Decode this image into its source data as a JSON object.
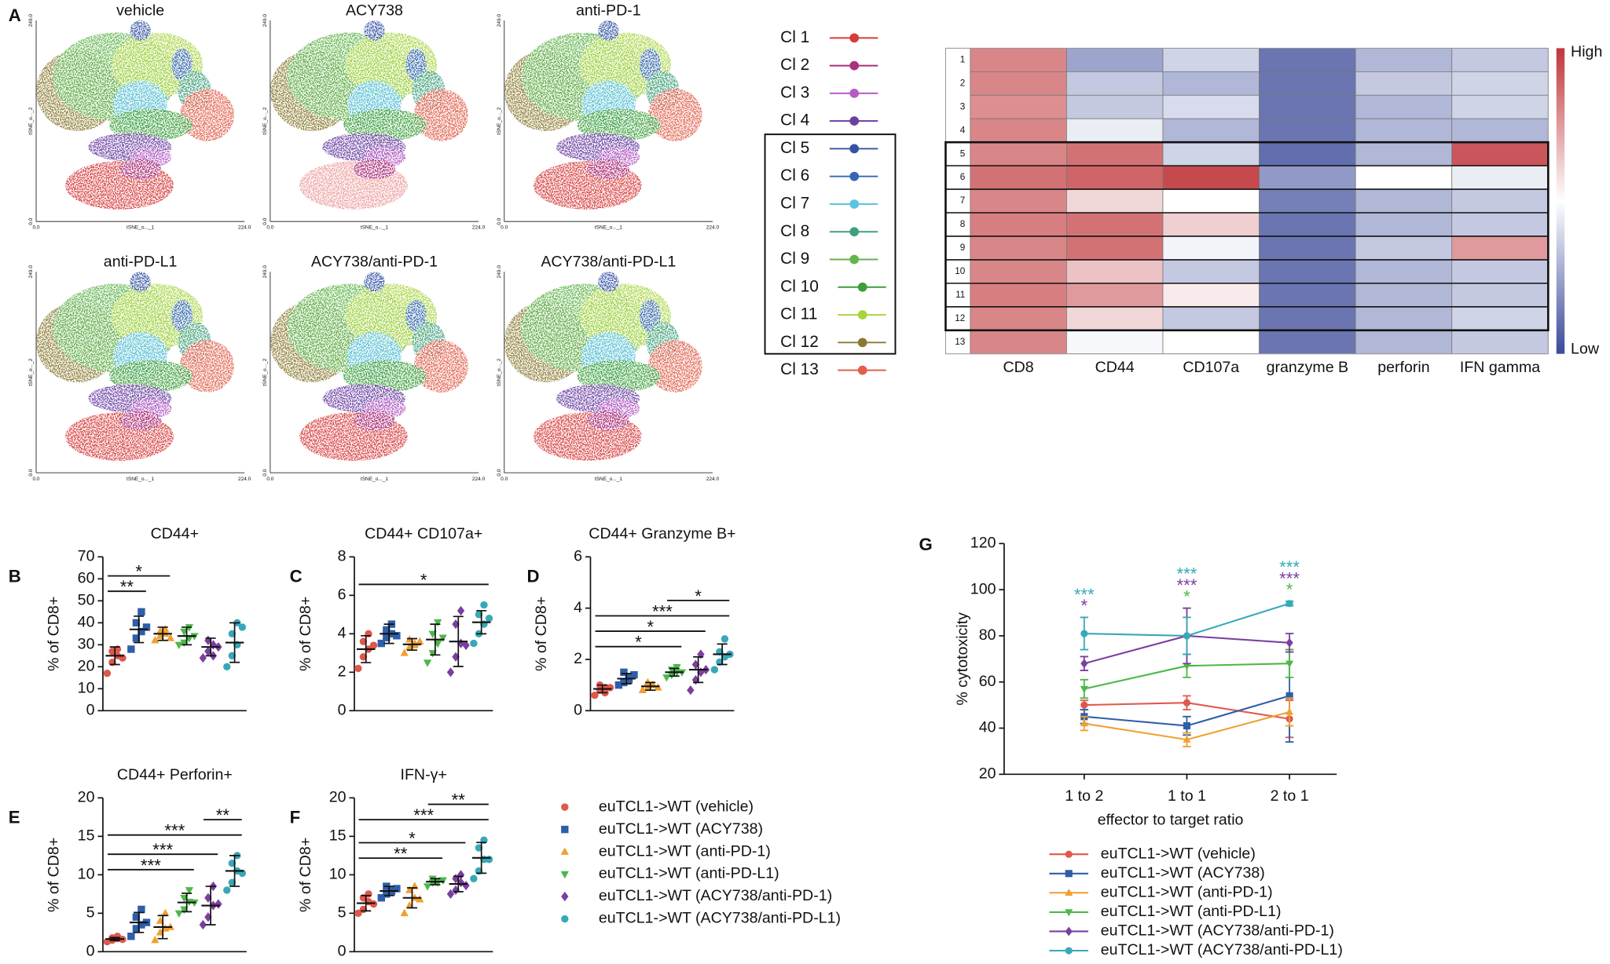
{
  "tsne": {
    "panel": "A",
    "titles": [
      "vehicle",
      "ACY738",
      "anti-PD-1",
      "anti-PD-L1",
      "ACY738/anti-PD-1",
      "ACY738/anti-PD-L1"
    ],
    "xticks": [
      {
        "value": 0,
        "label": "0.0"
      },
      {
        "value": 224,
        "label": "224.0"
      }
    ],
    "yticks": [
      {
        "value": 0,
        "label": "0.0"
      },
      {
        "value": 249,
        "label": "249.0"
      }
    ],
    "xlabel": "tSNE_o..._1",
    "ylabel": "tSNE_o..._2",
    "clusters": {
      "labels": [
        "Cl 1",
        "Cl 2",
        "Cl 3",
        "Cl 4",
        "Cl 5",
        "Cl 6",
        "Cl 7",
        "Cl 8",
        "Cl 9",
        "Cl 10",
        "Cl 11",
        "Cl 12",
        "Cl 13"
      ],
      "colors": [
        "#d63c3c",
        "#a8307e",
        "#b45cc4",
        "#6a3fa2",
        "#3452a4",
        "#3466b8",
        "#5cc3e2",
        "#3fa07e",
        "#62b44e",
        "#3c9e3c",
        "#a6d43e",
        "#8a7a30",
        "#e0604c"
      ]
    }
  },
  "legend_groups": {
    "names": [
      "euTCL1->WT (vehicle)",
      "euTCL1->WT (ACY738)",
      "euTCL1->WT (anti-PD-1)",
      "euTCL1->WT (anti-PD-L1)",
      "euTCL1->WT (ACY738/anti-PD-1)",
      "euTCL1->WT (ACY738/anti-PD-L1)"
    ],
    "colors": [
      "#e0574c",
      "#2f5ea8",
      "#f0a030",
      "#4cb848",
      "#7b3fa0",
      "#38a8b8"
    ],
    "markers": [
      "circle",
      "square",
      "triangle",
      "triangle-down",
      "diamond",
      "circle"
    ]
  },
  "chart_data": [
    {
      "type": "heatmap",
      "rows": [
        "1",
        "2",
        "3",
        "4",
        "5",
        "6",
        "7",
        "8",
        "9",
        "10",
        "11",
        "12",
        "13"
      ],
      "columns": [
        "CD8",
        "CD44",
        "CD107a",
        "granzyme B",
        "perforin",
        "IFN gamma"
      ],
      "values": [
        [
          0.8,
          0.25,
          0.38,
          0.12,
          0.3,
          0.35
        ],
        [
          0.8,
          0.35,
          0.3,
          0.12,
          0.35,
          0.38
        ],
        [
          0.78,
          0.35,
          0.4,
          0.12,
          0.3,
          0.38
        ],
        [
          0.8,
          0.45,
          0.3,
          0.12,
          0.3,
          0.3
        ],
        [
          0.8,
          0.85,
          0.38,
          0.1,
          0.3,
          0.92
        ],
        [
          0.85,
          0.88,
          0.95,
          0.22,
          0.5,
          0.45
        ],
        [
          0.8,
          0.6,
          0.5,
          0.15,
          0.3,
          0.35
        ],
        [
          0.82,
          0.85,
          0.62,
          0.12,
          0.3,
          0.35
        ],
        [
          0.8,
          0.85,
          0.47,
          0.12,
          0.35,
          0.75
        ],
        [
          0.8,
          0.65,
          0.35,
          0.12,
          0.3,
          0.35
        ],
        [
          0.82,
          0.75,
          0.55,
          0.12,
          0.3,
          0.35
        ],
        [
          0.8,
          0.6,
          0.35,
          0.12,
          0.3,
          0.38
        ],
        [
          0.8,
          0.48,
          0.5,
          0.12,
          0.3,
          0.35
        ]
      ],
      "clim": [
        0,
        1
      ],
      "colorbar_labels": [
        "High",
        "Low"
      ]
    },
    {
      "type": "dot",
      "panel": "B",
      "title": "CD44+",
      "ylabel": "% of CD8+",
      "ylim": [
        0,
        70
      ],
      "yticks": [
        0,
        10,
        20,
        30,
        40,
        50,
        60,
        70
      ],
      "values": [
        [
          17,
          22,
          25,
          27,
          28,
          24
        ],
        [
          28,
          33,
          36,
          40,
          45,
          38
        ],
        [
          32,
          34,
          35,
          36,
          37,
          33
        ],
        [
          30,
          31,
          33,
          36,
          38,
          34
        ],
        [
          24,
          27,
          30,
          32,
          25,
          29
        ],
        [
          20,
          25,
          30,
          35,
          40,
          38
        ]
      ],
      "means": [
        25,
        37,
        35,
        34,
        29,
        31
      ],
      "sds": [
        4,
        6,
        3,
        4,
        4,
        9
      ],
      "brackets": [
        {
          "from": 0,
          "to": 1,
          "label": "**"
        },
        {
          "from": 0,
          "to": 2,
          "label": "*"
        }
      ]
    },
    {
      "type": "dot",
      "panel": "C",
      "title": "CD44+ CD107a+",
      "ylabel": "% of CD8+",
      "ylim": [
        0,
        8
      ],
      "yticks": [
        0,
        2,
        4,
        6,
        8
      ],
      "values": [
        [
          2.2,
          2.8,
          3.2,
          3.6,
          4.0,
          3.4
        ],
        [
          3.5,
          3.8,
          4.0,
          4.2,
          4.5,
          3.9
        ],
        [
          3.0,
          3.3,
          3.5,
          3.7,
          3.4,
          3.6
        ],
        [
          2.5,
          3.0,
          3.5,
          4.0,
          4.6,
          3.8
        ],
        [
          2.0,
          2.8,
          3.5,
          4.5,
          5.2,
          3.4
        ],
        [
          3.5,
          4.0,
          4.5,
          5.0,
          5.5,
          4.8
        ]
      ],
      "means": [
        3.2,
        4.0,
        3.45,
        3.7,
        3.6,
        4.6
      ],
      "sds": [
        0.7,
        0.5,
        0.3,
        0.8,
        1.3,
        0.6
      ],
      "brackets": [
        {
          "from": 0,
          "to": 5,
          "label": "*"
        }
      ]
    },
    {
      "type": "dot",
      "panel": "D",
      "title": "CD44+ Granzyme B+",
      "ylabel": "% of CD8+",
      "ylim": [
        0,
        6
      ],
      "yticks": [
        0,
        2,
        4,
        6
      ],
      "values": [
        [
          0.6,
          0.8,
          0.9,
          1.0,
          0.7,
          0.9
        ],
        [
          1.0,
          1.1,
          1.3,
          1.5,
          1.2,
          1.4
        ],
        [
          0.8,
          0.9,
          1.0,
          1.1,
          1.0,
          0.9
        ],
        [
          1.3,
          1.4,
          1.5,
          1.6,
          1.7,
          1.5
        ],
        [
          0.8,
          1.2,
          1.5,
          1.8,
          2.2,
          1.6
        ],
        [
          1.6,
          1.9,
          2.1,
          2.3,
          2.8,
          2.2
        ]
      ],
      "means": [
        0.85,
        1.25,
        0.95,
        1.5,
        1.6,
        2.2
      ],
      "sds": [
        0.15,
        0.2,
        0.15,
        0.15,
        0.5,
        0.4
      ],
      "brackets": [
        {
          "from": 0,
          "to": 3,
          "label": "*"
        },
        {
          "from": 0,
          "to": 4,
          "label": "*"
        },
        {
          "from": 0,
          "to": 5,
          "label": "***"
        },
        {
          "from": 3,
          "to": 5,
          "label": "*"
        }
      ]
    },
    {
      "type": "dot",
      "panel": "E",
      "title": "CD44+ Perforin+",
      "ylabel": "% of CD8+",
      "ylim": [
        0,
        20
      ],
      "yticks": [
        0,
        5,
        10,
        15,
        20
      ],
      "values": [
        [
          1.3,
          1.5,
          1.7,
          1.8,
          2.0,
          1.6
        ],
        [
          2.0,
          3.0,
          3.5,
          4.5,
          5.5,
          3.8
        ],
        [
          1.5,
          2.5,
          3.0,
          4.0,
          5.0,
          3.2
        ],
        [
          5.0,
          5.5,
          6.5,
          7.0,
          8.0,
          6.4
        ],
        [
          3.5,
          4.5,
          6.0,
          7.0,
          8.5,
          6.2
        ],
        [
          8.0,
          9.0,
          10.5,
          11.5,
          12.5,
          10.2
        ]
      ],
      "means": [
        1.65,
        3.8,
        3.2,
        6.4,
        6.0,
        10.5
      ],
      "sds": [
        0.2,
        1.3,
        1.5,
        1.2,
        2.5,
        2.0
      ],
      "brackets": [
        {
          "from": 0,
          "to": 3,
          "label": "***"
        },
        {
          "from": 0,
          "to": 4,
          "label": "***"
        },
        {
          "from": 0,
          "to": 5,
          "label": "***"
        },
        {
          "from": 4,
          "to": 5,
          "label": "**"
        }
      ]
    },
    {
      "type": "dot",
      "panel": "F",
      "title": "IFN-γ+",
      "ylabel": "% of CD8+",
      "ylim": [
        0,
        20
      ],
      "yticks": [
        0,
        5,
        10,
        15,
        20
      ],
      "values": [
        [
          5.0,
          5.5,
          6.5,
          7.0,
          7.5,
          6.2
        ],
        [
          7.0,
          7.5,
          8.0,
          8.5,
          7.8,
          8.2
        ],
        [
          5.0,
          6.0,
          7.0,
          8.0,
          8.5,
          6.8
        ],
        [
          8.5,
          9.0,
          9.2,
          9.5,
          9.0,
          9.3
        ],
        [
          7.5,
          8.0,
          9.0,
          9.5,
          10.0,
          8.6
        ],
        [
          9.5,
          10.5,
          12.0,
          13.5,
          14.5,
          12.0
        ]
      ],
      "means": [
        6.3,
        7.9,
        7.0,
        9.1,
        8.8,
        12.2
      ],
      "sds": [
        1.0,
        0.6,
        1.3,
        0.4,
        1.0,
        2.0
      ],
      "brackets": [
        {
          "from": 0,
          "to": 3,
          "label": "**"
        },
        {
          "from": 0,
          "to": 4,
          "label": "*"
        },
        {
          "from": 0,
          "to": 5,
          "label": "***"
        },
        {
          "from": 3,
          "to": 5,
          "label": "**"
        }
      ]
    },
    {
      "type": "line",
      "panel": "G",
      "categories": [
        "1 to 2",
        "1 to 1",
        "2 to 1"
      ],
      "xlabel": "effector to target ratio",
      "ylabel": "% cytotoxicity",
      "ylim": [
        20,
        120
      ],
      "yticks": [
        20,
        40,
        60,
        80,
        100,
        120
      ],
      "series": [
        {
          "name": "euTCL1->WT (vehicle)",
          "color": "#e0574c",
          "marker": "circle",
          "values": [
            50,
            51,
            44
          ],
          "errors": [
            2,
            3,
            8
          ]
        },
        {
          "name": "euTCL1->WT (ACY738)",
          "color": "#2f5ea8",
          "marker": "square",
          "values": [
            45,
            41,
            54
          ],
          "errors": [
            3,
            4,
            20
          ]
        },
        {
          "name": "euTCL1->WT (anti-PD-1)",
          "color": "#f0a030",
          "marker": "triangle",
          "values": [
            42,
            35,
            47
          ],
          "errors": [
            3,
            3,
            6
          ]
        },
        {
          "name": "euTCL1->WT (anti-PD-L1)",
          "color": "#4cb848",
          "marker": "triangle-down",
          "values": [
            57,
            67,
            68
          ],
          "errors": [
            4,
            5,
            6
          ]
        },
        {
          "name": "euTCL1->WT (ACY738/anti-PD-1)",
          "color": "#7b3fa0",
          "marker": "diamond",
          "values": [
            68,
            80,
            77
          ],
          "errors": [
            3,
            12,
            4
          ]
        },
        {
          "name": "euTCL1->WT (ACY738/anti-PD-L1)",
          "color": "#38a8b8",
          "marker": "circle",
          "values": [
            81,
            80,
            94
          ],
          "errors": [
            7,
            8,
            1
          ]
        }
      ],
      "annotations": [
        {
          "category": 0,
          "series": 5,
          "text": "***"
        },
        {
          "category": 0,
          "series": 4,
          "text": "*"
        },
        {
          "category": 1,
          "series": 5,
          "text": "***"
        },
        {
          "category": 1,
          "series": 4,
          "text": "***"
        },
        {
          "category": 1,
          "series": 3,
          "text": "*"
        },
        {
          "category": 2,
          "series": 5,
          "text": "***"
        },
        {
          "category": 2,
          "series": 4,
          "text": "***"
        },
        {
          "category": 2,
          "series": 3,
          "text": "*"
        }
      ]
    }
  ]
}
